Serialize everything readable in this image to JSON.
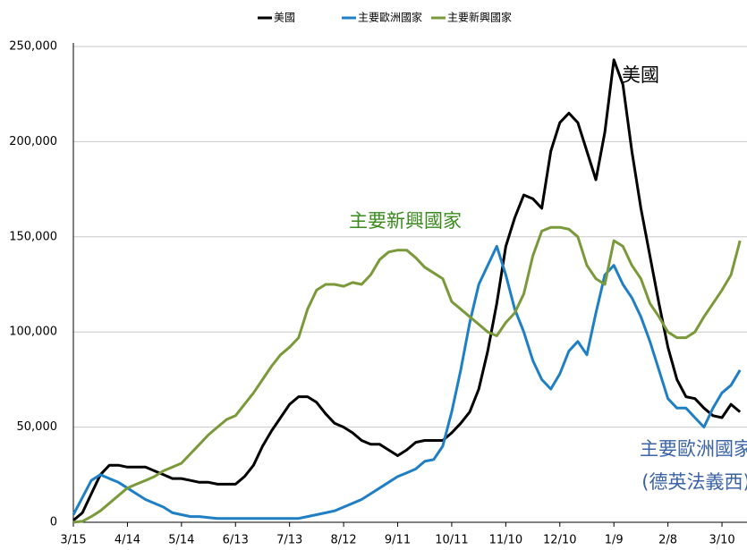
{
  "chart_data": {
    "type": "line",
    "categories": [
      "3/15",
      null,
      null,
      null,
      null,
      null,
      "4/14",
      null,
      null,
      null,
      null,
      null,
      "5/14",
      null,
      null,
      null,
      null,
      null,
      "6/13",
      null,
      null,
      null,
      null,
      null,
      "7/13",
      null,
      null,
      null,
      null,
      null,
      "8/12",
      null,
      null,
      null,
      null,
      null,
      "9/11",
      null,
      null,
      null,
      null,
      null,
      "10/11",
      null,
      null,
      null,
      null,
      null,
      "11/10",
      null,
      null,
      null,
      null,
      null,
      "12/10",
      null,
      null,
      null,
      null,
      null,
      "1/9",
      null,
      null,
      null,
      null,
      null,
      "2/8",
      null,
      null,
      null,
      null,
      null,
      "3/10",
      null,
      null
    ],
    "series": [
      {
        "name": "美國",
        "color": "#000000",
        "values": [
          1000,
          5000,
          15000,
          25000,
          30000,
          30000,
          29000,
          29000,
          29000,
          27000,
          25000,
          23000,
          23000,
          22000,
          21000,
          21000,
          20000,
          20000,
          20000,
          24000,
          30000,
          40000,
          48000,
          55000,
          62000,
          66000,
          66000,
          63000,
          57000,
          52000,
          50000,
          47000,
          43000,
          41000,
          41000,
          38000,
          35000,
          38000,
          42000,
          43000,
          43000,
          43000,
          47000,
          52000,
          58000,
          70000,
          90000,
          115000,
          145000,
          160000,
          172000,
          170000,
          165000,
          195000,
          210000,
          215000,
          210000,
          195000,
          180000,
          205000,
          243000,
          230000,
          195000,
          165000,
          140000,
          115000,
          92000,
          75000,
          66000,
          65000,
          60000,
          56000,
          55000,
          62000,
          58000
        ]
      },
      {
        "name": "主要歐洲國家",
        "color": "#1f7fc4",
        "values": [
          4000,
          13000,
          22000,
          25000,
          23000,
          21000,
          18000,
          15000,
          12000,
          10000,
          8000,
          5000,
          4000,
          3000,
          3000,
          2500,
          2000,
          2000,
          2000,
          2000,
          2000,
          2000,
          2000,
          2000,
          2000,
          2000,
          3000,
          4000,
          5000,
          6000,
          8000,
          10000,
          12000,
          15000,
          18000,
          21000,
          24000,
          26000,
          28000,
          32000,
          33000,
          40000,
          58000,
          80000,
          105000,
          125000,
          135000,
          145000,
          130000,
          112000,
          100000,
          85000,
          75000,
          70000,
          78000,
          90000,
          95000,
          88000,
          110000,
          130000,
          135000,
          125000,
          118000,
          108000,
          95000,
          80000,
          65000,
          60000,
          60000,
          55000,
          50000,
          60000,
          68000,
          72000,
          80000
        ]
      },
      {
        "name": "主要新興國家",
        "color": "#7a9a3a",
        "values": [
          0,
          500,
          3000,
          6000,
          10000,
          14000,
          18000,
          20000,
          22000,
          24000,
          27000,
          29000,
          31000,
          36000,
          41000,
          46000,
          50000,
          54000,
          56000,
          62000,
          68000,
          75000,
          82000,
          88000,
          92000,
          97000,
          112000,
          122000,
          125000,
          125000,
          124000,
          126000,
          125000,
          130000,
          138000,
          142000,
          143000,
          143000,
          139000,
          134000,
          131000,
          128000,
          116000,
          112000,
          108000,
          104000,
          100000,
          98000,
          105000,
          110000,
          120000,
          140000,
          153000,
          155000,
          155000,
          154000,
          150000,
          135000,
          128000,
          125000,
          148000,
          145000,
          135000,
          128000,
          115000,
          108000,
          100000,
          97000,
          97000,
          100000,
          108000,
          115000,
          122000,
          130000,
          148000
        ]
      }
    ],
    "ylim": [
      0,
      250000
    ],
    "yticks": [
      0,
      {
        "value": 50000,
        "label": "50,000"
      },
      {
        "value": 100000,
        "label": "100,000"
      },
      {
        "value": 150000,
        "label": "150,000"
      },
      {
        "value": 200000,
        "label": "200,000"
      },
      {
        "value": 250000,
        "label": "250,000"
      }
    ],
    "grid": true,
    "legend": "top",
    "annotations": [
      {
        "text": "美國",
        "color": "#000000"
      },
      {
        "text": "主要新興國家",
        "color": "#3a8a1e"
      },
      {
        "text": "主要歐洲國家",
        "color": "#3a63a8"
      },
      {
        "text": "(德英法義西)",
        "color": "#3a63a8"
      }
    ]
  }
}
